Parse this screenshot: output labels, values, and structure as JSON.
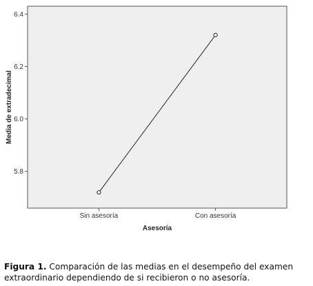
{
  "chart_data": {
    "type": "line",
    "categories": [
      "Sin asesoría",
      "Con asesoría"
    ],
    "values": [
      5.72,
      6.32
    ],
    "xlabel": "Asesoría",
    "ylabel": "Media de extradecimal",
    "ylim": [
      5.66,
      6.43
    ],
    "yticks": [
      5.8,
      6.0,
      6.2,
      6.4
    ],
    "ytick_labels": [
      "5.8",
      "6.0",
      "6.2",
      "6.4"
    ],
    "grid": false,
    "legend": "none",
    "colors": {
      "plot_background": "#efefef",
      "line": "#222222",
      "marker_fill": "#ffffff"
    }
  },
  "caption": {
    "label": "Figura 1.",
    "text": " Comparación de las medias en el desempeño del examen extraordinario dependiendo de si recibieron o no asesoría."
  }
}
